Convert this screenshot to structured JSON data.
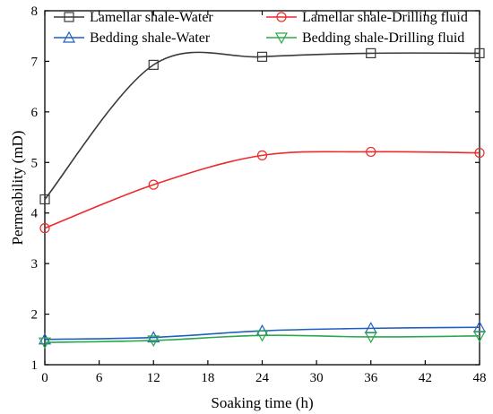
{
  "chart_data": {
    "type": "line",
    "xlabel": "Soaking time (h)",
    "ylabel": "Permeability (mD)",
    "xlim": [
      0,
      48
    ],
    "ylim": [
      1,
      8
    ],
    "xticks": [
      0,
      6,
      12,
      18,
      24,
      30,
      36,
      42,
      48
    ],
    "yticks": [
      1,
      2,
      3,
      4,
      5,
      6,
      7,
      8
    ],
    "grid": false,
    "legend": "top, two columns",
    "x": [
      0,
      12,
      24,
      36,
      48
    ],
    "series": [
      {
        "name": "Lamellar shale-Water",
        "color": "#3a3a3a",
        "marker": "square",
        "values": [
          4.27,
          6.93,
          7.09,
          7.16,
          7.16
        ]
      },
      {
        "name": "Lamellar shale-Drilling fluid",
        "color": "#ee2a2a",
        "marker": "circle",
        "values": [
          3.7,
          4.56,
          5.14,
          5.21,
          5.19
        ]
      },
      {
        "name": "Bedding shale-Water",
        "color": "#1f5fbf",
        "marker": "triangle-up",
        "values": [
          1.5,
          1.54,
          1.67,
          1.72,
          1.74
        ]
      },
      {
        "name": "Bedding shale-Drilling fluid",
        "color": "#2aa84a",
        "marker": "triangle-down",
        "values": [
          1.44,
          1.48,
          1.58,
          1.55,
          1.57
        ]
      }
    ]
  }
}
